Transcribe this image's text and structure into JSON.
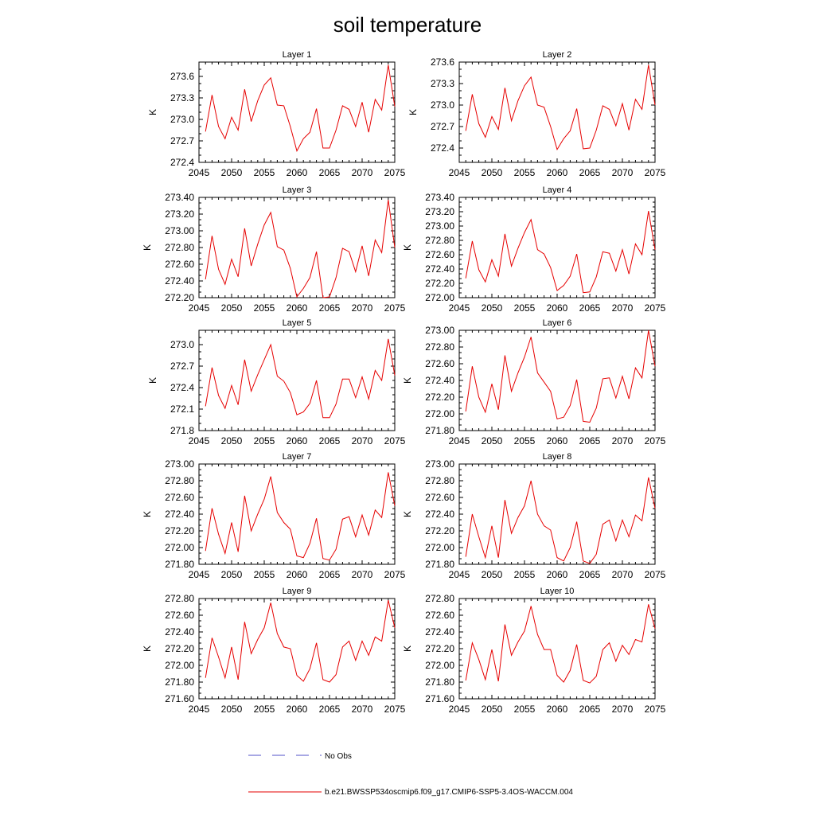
{
  "figure": {
    "title": "soil temperature",
    "legend": [
      {
        "label": "No Obs",
        "color": "#5050c8",
        "style": "dashed"
      },
      {
        "label": "b.e21.BWSSP534oscmip6.f09_g17.CMIP6-SSP5-3.4OS-WACCM.004",
        "color": "#e60000",
        "style": "solid"
      }
    ]
  },
  "chart_data": [
    {
      "type": "line",
      "title": "Layer 1",
      "ylabel": "K",
      "xlim": [
        2045,
        2075
      ],
      "ylim": [
        272.4,
        273.8
      ],
      "xticks": [
        2045,
        2050,
        2055,
        2060,
        2065,
        2070,
        2075
      ],
      "yticks": [
        "272.4",
        "272.7",
        "273.0",
        "273.3",
        "273.6"
      ],
      "series": [
        {
          "color": "#e60000",
          "x": [
            2046,
            2047,
            2048,
            2049,
            2050,
            2051,
            2052,
            2053,
            2054,
            2055,
            2056,
            2057,
            2058,
            2059,
            2060,
            2061,
            2062,
            2063,
            2064,
            2065,
            2066,
            2067,
            2068,
            2069,
            2070,
            2071,
            2072,
            2073,
            2074,
            2075
          ],
          "values": [
            272.83,
            273.34,
            272.9,
            272.73,
            273.03,
            272.85,
            273.42,
            272.97,
            273.26,
            273.48,
            273.58,
            273.2,
            273.19,
            272.9,
            272.56,
            272.73,
            272.82,
            273.15,
            272.6,
            272.6,
            272.85,
            273.19,
            273.14,
            272.9,
            273.24,
            272.82,
            273.28,
            273.13,
            273.76,
            273.18
          ]
        }
      ]
    },
    {
      "type": "line",
      "title": "Layer 2",
      "ylabel": "K",
      "xlim": [
        2045,
        2075
      ],
      "ylim": [
        272.2,
        273.6
      ],
      "xticks": [
        2045,
        2050,
        2055,
        2060,
        2065,
        2070,
        2075
      ],
      "yticks": [
        "272.4",
        "272.7",
        "273.0",
        "273.3",
        "273.6"
      ],
      "series": [
        {
          "color": "#e60000",
          "x": [
            2046,
            2047,
            2048,
            2049,
            2050,
            2051,
            2052,
            2053,
            2054,
            2055,
            2056,
            2057,
            2058,
            2059,
            2060,
            2061,
            2062,
            2063,
            2064,
            2065,
            2066,
            2067,
            2068,
            2069,
            2070,
            2071,
            2072,
            2073,
            2074,
            2075
          ],
          "values": [
            272.64,
            273.15,
            272.74,
            272.55,
            272.84,
            272.66,
            273.24,
            272.78,
            273.06,
            273.27,
            273.39,
            273.0,
            272.97,
            272.7,
            272.38,
            272.53,
            272.64,
            272.95,
            272.39,
            272.4,
            272.65,
            272.99,
            272.94,
            272.71,
            273.02,
            272.65,
            273.08,
            272.94,
            273.56,
            273.0
          ]
        }
      ]
    },
    {
      "type": "line",
      "title": "Layer 3",
      "ylabel": "K",
      "xlim": [
        2045,
        2075
      ],
      "ylim": [
        272.2,
        273.4
      ],
      "xticks": [
        2045,
        2050,
        2055,
        2060,
        2065,
        2070,
        2075
      ],
      "yticks": [
        "272.20",
        "272.40",
        "272.60",
        "272.80",
        "273.00",
        "273.20",
        "273.40"
      ],
      "series": [
        {
          "color": "#e60000",
          "x": [
            2046,
            2047,
            2048,
            2049,
            2050,
            2051,
            2052,
            2053,
            2054,
            2055,
            2056,
            2057,
            2058,
            2059,
            2060,
            2061,
            2062,
            2063,
            2064,
            2065,
            2066,
            2067,
            2068,
            2069,
            2070,
            2071,
            2072,
            2073,
            2074,
            2075
          ],
          "values": [
            272.42,
            272.94,
            272.54,
            272.36,
            272.66,
            272.45,
            273.03,
            272.58,
            272.84,
            273.07,
            273.22,
            272.81,
            272.77,
            272.55,
            272.21,
            272.31,
            272.44,
            272.75,
            272.2,
            272.21,
            272.44,
            272.79,
            272.75,
            272.51,
            272.82,
            272.46,
            272.89,
            272.74,
            273.37,
            272.8
          ]
        }
      ]
    },
    {
      "type": "line",
      "title": "Layer 4",
      "ylabel": "K",
      "xlim": [
        2045,
        2075
      ],
      "ylim": [
        272.0,
        273.4
      ],
      "xticks": [
        2045,
        2050,
        2055,
        2060,
        2065,
        2070,
        2075
      ],
      "yticks": [
        "272.00",
        "272.20",
        "272.40",
        "272.60",
        "272.80",
        "273.00",
        "273.20",
        "273.40"
      ],
      "series": [
        {
          "color": "#e60000",
          "x": [
            2046,
            2047,
            2048,
            2049,
            2050,
            2051,
            2052,
            2053,
            2054,
            2055,
            2056,
            2057,
            2058,
            2059,
            2060,
            2061,
            2062,
            2063,
            2064,
            2065,
            2066,
            2067,
            2068,
            2069,
            2070,
            2071,
            2072,
            2073,
            2074,
            2075
          ],
          "values": [
            272.27,
            272.79,
            272.39,
            272.22,
            272.53,
            272.3,
            272.89,
            272.44,
            272.69,
            272.91,
            273.09,
            272.67,
            272.61,
            272.42,
            272.1,
            272.17,
            272.3,
            272.61,
            272.07,
            272.08,
            272.29,
            272.64,
            272.62,
            272.37,
            272.67,
            272.33,
            272.75,
            272.6,
            273.21,
            272.67
          ]
        }
      ]
    },
    {
      "type": "line",
      "title": "Layer 5",
      "ylabel": "K",
      "xlim": [
        2045,
        2075
      ],
      "ylim": [
        271.8,
        273.2
      ],
      "xticks": [
        2045,
        2050,
        2055,
        2060,
        2065,
        2070,
        2075
      ],
      "yticks": [
        "271.8",
        "272.1",
        "272.4",
        "272.7",
        "273.0"
      ],
      "series": [
        {
          "color": "#e60000",
          "x": [
            2046,
            2047,
            2048,
            2049,
            2050,
            2051,
            2052,
            2053,
            2054,
            2055,
            2056,
            2057,
            2058,
            2059,
            2060,
            2061,
            2062,
            2063,
            2064,
            2065,
            2066,
            2067,
            2068,
            2069,
            2070,
            2071,
            2072,
            2073,
            2074,
            2075
          ],
          "values": [
            272.14,
            272.68,
            272.29,
            272.11,
            272.43,
            272.16,
            272.79,
            272.35,
            272.58,
            272.79,
            273.0,
            272.56,
            272.49,
            272.33,
            272.02,
            272.06,
            272.18,
            272.5,
            271.98,
            271.98,
            272.17,
            272.52,
            272.52,
            272.26,
            272.55,
            272.24,
            272.64,
            272.5,
            273.08,
            272.57
          ]
        }
      ]
    },
    {
      "type": "line",
      "title": "Layer 6",
      "ylabel": "K",
      "xlim": [
        2045,
        2075
      ],
      "ylim": [
        271.8,
        273.0
      ],
      "xticks": [
        2045,
        2050,
        2055,
        2060,
        2065,
        2070,
        2075
      ],
      "yticks": [
        "271.80",
        "272.00",
        "272.20",
        "272.40",
        "272.60",
        "272.80",
        "273.00"
      ],
      "series": [
        {
          "color": "#e60000",
          "x": [
            2046,
            2047,
            2048,
            2049,
            2050,
            2051,
            2052,
            2053,
            2054,
            2055,
            2056,
            2057,
            2058,
            2059,
            2060,
            2061,
            2062,
            2063,
            2064,
            2065,
            2066,
            2067,
            2068,
            2069,
            2070,
            2071,
            2072,
            2073,
            2074,
            2075
          ],
          "values": [
            272.03,
            272.57,
            272.2,
            272.02,
            272.36,
            272.05,
            272.7,
            272.27,
            272.49,
            272.68,
            272.92,
            272.49,
            272.38,
            272.27,
            271.94,
            271.96,
            272.1,
            272.41,
            271.91,
            271.9,
            272.07,
            272.42,
            272.43,
            272.19,
            272.45,
            272.18,
            272.55,
            272.43,
            273.0,
            272.57
          ]
        }
      ]
    },
    {
      "type": "line",
      "title": "Layer 7",
      "ylabel": "K",
      "xlim": [
        2045,
        2075
      ],
      "ylim": [
        271.8,
        273.0
      ],
      "xticks": [
        2045,
        2050,
        2055,
        2060,
        2065,
        2070,
        2075
      ],
      "yticks": [
        "271.80",
        "272.00",
        "272.20",
        "272.40",
        "272.60",
        "272.80",
        "273.00"
      ],
      "series": [
        {
          "color": "#e60000",
          "x": [
            2046,
            2047,
            2048,
            2049,
            2050,
            2051,
            2052,
            2053,
            2054,
            2055,
            2056,
            2057,
            2058,
            2059,
            2060,
            2061,
            2062,
            2063,
            2064,
            2065,
            2066,
            2067,
            2068,
            2069,
            2070,
            2071,
            2072,
            2073,
            2074,
            2075
          ],
          "values": [
            271.96,
            272.47,
            272.16,
            271.93,
            272.3,
            271.95,
            272.62,
            272.2,
            272.4,
            272.58,
            272.85,
            272.42,
            272.3,
            272.22,
            271.9,
            271.88,
            272.05,
            272.35,
            271.87,
            271.85,
            271.98,
            272.34,
            272.37,
            272.13,
            272.39,
            272.15,
            272.45,
            272.36,
            272.9,
            272.5
          ]
        }
      ]
    },
    {
      "type": "line",
      "title": "Layer 8",
      "ylabel": "K",
      "xlim": [
        2045,
        2075
      ],
      "ylim": [
        271.8,
        273.0
      ],
      "xticks": [
        2045,
        2050,
        2055,
        2060,
        2065,
        2070,
        2075
      ],
      "yticks": [
        "271.80",
        "272.00",
        "272.20",
        "272.40",
        "272.60",
        "272.80",
        "273.00"
      ],
      "series": [
        {
          "color": "#e60000",
          "x": [
            2046,
            2047,
            2048,
            2049,
            2050,
            2051,
            2052,
            2053,
            2054,
            2055,
            2056,
            2057,
            2058,
            2059,
            2060,
            2061,
            2062,
            2063,
            2064,
            2065,
            2066,
            2067,
            2068,
            2069,
            2070,
            2071,
            2072,
            2073,
            2074,
            2075
          ],
          "values": [
            271.89,
            272.4,
            272.13,
            271.88,
            272.26,
            271.88,
            272.57,
            272.17,
            272.36,
            272.5,
            272.8,
            272.4,
            272.26,
            272.21,
            271.88,
            271.84,
            272.0,
            272.31,
            271.84,
            271.81,
            271.92,
            272.28,
            272.33,
            272.08,
            272.33,
            272.13,
            272.39,
            272.32,
            272.84,
            272.47
          ]
        }
      ]
    },
    {
      "type": "line",
      "title": "Layer 9",
      "ylabel": "K",
      "xlim": [
        2045,
        2075
      ],
      "ylim": [
        271.6,
        272.8
      ],
      "xticks": [
        2045,
        2050,
        2055,
        2060,
        2065,
        2070,
        2075
      ],
      "yticks": [
        "271.60",
        "271.80",
        "272.00",
        "272.20",
        "272.40",
        "272.60",
        "272.80"
      ],
      "series": [
        {
          "color": "#e60000",
          "x": [
            2046,
            2047,
            2048,
            2049,
            2050,
            2051,
            2052,
            2053,
            2054,
            2055,
            2056,
            2057,
            2058,
            2059,
            2060,
            2061,
            2062,
            2063,
            2064,
            2065,
            2066,
            2067,
            2068,
            2069,
            2070,
            2071,
            2072,
            2073,
            2074,
            2075
          ],
          "values": [
            271.85,
            272.33,
            272.1,
            271.85,
            272.22,
            271.83,
            272.52,
            272.14,
            272.31,
            272.45,
            272.75,
            272.38,
            272.22,
            272.2,
            271.88,
            271.81,
            271.96,
            272.27,
            271.83,
            271.8,
            271.89,
            272.22,
            272.29,
            272.06,
            272.29,
            272.12,
            272.34,
            272.29,
            272.78,
            272.45
          ]
        }
      ]
    },
    {
      "type": "line",
      "title": "Layer 10",
      "ylabel": "K",
      "xlim": [
        2045,
        2075
      ],
      "ylim": [
        271.6,
        272.8
      ],
      "xticks": [
        2045,
        2050,
        2055,
        2060,
        2065,
        2070,
        2075
      ],
      "yticks": [
        "271.60",
        "271.80",
        "272.00",
        "272.20",
        "272.40",
        "272.60",
        "272.80"
      ],
      "series": [
        {
          "color": "#e60000",
          "x": [
            2046,
            2047,
            2048,
            2049,
            2050,
            2051,
            2052,
            2053,
            2054,
            2055,
            2056,
            2057,
            2058,
            2059,
            2060,
            2061,
            2062,
            2063,
            2064,
            2065,
            2066,
            2067,
            2068,
            2069,
            2070,
            2071,
            2072,
            2073,
            2074,
            2075
          ],
          "values": [
            271.82,
            272.27,
            272.07,
            271.83,
            272.19,
            271.81,
            272.49,
            272.12,
            272.28,
            272.41,
            272.71,
            272.37,
            272.19,
            272.19,
            271.88,
            271.8,
            271.94,
            272.25,
            271.82,
            271.79,
            271.87,
            272.19,
            272.27,
            272.05,
            272.24,
            272.13,
            272.31,
            272.28,
            272.73,
            272.44
          ]
        }
      ]
    }
  ]
}
